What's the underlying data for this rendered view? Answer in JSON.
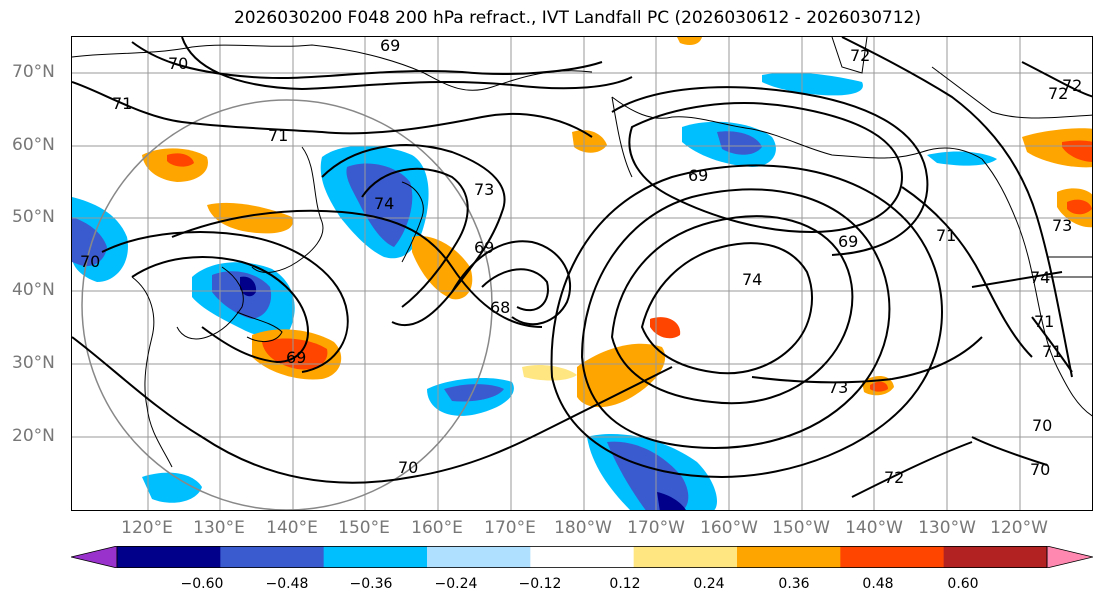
{
  "title": "2026030200 F048 200 hPa refract., IVT Landfall PC (2026030612 - 2026030712)",
  "lat_labels": [
    "70°N",
    "60°N",
    "50°N",
    "40°N",
    "30°N",
    "20°N"
  ],
  "lon_labels": [
    "120°E",
    "130°E",
    "140°E",
    "150°E",
    "160°E",
    "170°E",
    "180°W",
    "170°W",
    "160°W",
    "150°W",
    "140°W",
    "130°W",
    "120°W"
  ],
  "contour_labels": [
    "69",
    "70",
    "71",
    "72",
    "73",
    "74",
    "68",
    "69",
    "73",
    "74",
    "69",
    "71",
    "72",
    "70",
    "70",
    "72",
    "73",
    "74",
    "71",
    "69",
    "70",
    "71",
    "72",
    "69",
    "70",
    "71"
  ],
  "colorbar": {
    "ticks": [
      "−0.60",
      "−0.48",
      "−0.36",
      "−0.24",
      "−0.12",
      "0.12",
      "0.24",
      "0.36",
      "0.48",
      "0.60"
    ],
    "colors": [
      "#9932cc",
      "#00008b",
      "#3a5bd0",
      "#00bfff",
      "#b0e0ff",
      "#ffffff",
      "#ffe680",
      "#ffa500",
      "#ff4500",
      "#b22222",
      "#ff88b0"
    ]
  },
  "colors": {
    "blue_dark": "#3a5bd0",
    "blue_mid": "#00bfff",
    "blue_navy": "#00008b",
    "orange": "#ffa500",
    "red": "#ff4500",
    "yellow": "#ffe680",
    "contour": "#000000",
    "grid": "#999999"
  }
}
